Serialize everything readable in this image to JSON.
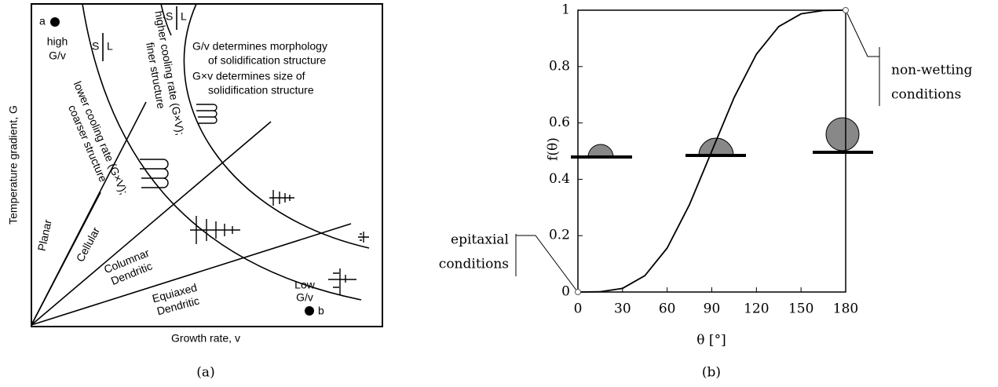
{
  "diagram": {
    "caption": "(a)",
    "y_axis_label": "Temperature gradient, G",
    "x_axis_label": "Growth rate, v",
    "point_a": {
      "letter": "a",
      "lines": [
        "high",
        "G/v"
      ]
    },
    "point_b": {
      "lines": [
        "Low",
        "G/v"
      ],
      "letter": "b"
    },
    "phase_labels": [
      {
        "s": "S",
        "l": "L"
      },
      {
        "s": "S",
        "l": "L"
      }
    ],
    "notes": [
      "G/v determines morphology",
      "of solidification structure",
      "G×v determines size of",
      "solidification structure"
    ],
    "cooling_labels": [
      {
        "lines": [
          "lower cooling rate (G×V);",
          "coarser structure"
        ]
      },
      {
        "lines": [
          "higher cooling rate (G×V);",
          "finer structure"
        ]
      }
    ],
    "regions": [
      {
        "lines": [
          "Planar"
        ]
      },
      {
        "lines": [
          "Cellular"
        ]
      },
      {
        "lines": [
          "Columnar",
          "Dendritic"
        ]
      },
      {
        "lines": [
          "Equiaxed",
          "Dendritic"
        ]
      }
    ]
  },
  "chart_data": {
    "type": "line",
    "caption": "(b)",
    "xlabel": "θ [°]",
    "ylabel": "f(θ)",
    "x": [
      0,
      15,
      30,
      45,
      60,
      75,
      90,
      105,
      120,
      135,
      150,
      165,
      180
    ],
    "series": [
      {
        "color": "#000000",
        "values": [
          0,
          0.001,
          0.013,
          0.058,
          0.156,
          0.31,
          0.5,
          0.69,
          0.844,
          0.942,
          0.987,
          0.999,
          1
        ]
      }
    ],
    "xlim": [
      0,
      180
    ],
    "ylim": [
      0,
      1
    ],
    "xticks": [
      0,
      30,
      60,
      90,
      120,
      150,
      180
    ],
    "yticks": [
      0,
      0.2,
      0.4,
      0.6,
      0.8,
      1
    ],
    "annotations": [
      {
        "lines": [
          "non-wetting",
          "conditions"
        ]
      },
      {
        "lines": [
          "epitaxial",
          "conditions"
        ]
      }
    ]
  }
}
